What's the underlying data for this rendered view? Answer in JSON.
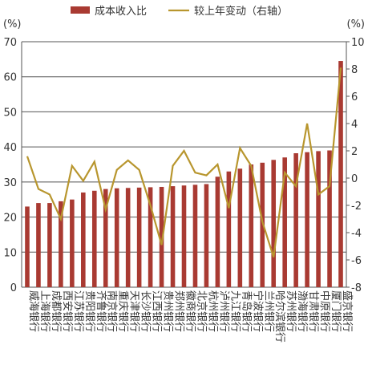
{
  "chart_data": {
    "type": "bar-line",
    "y_unit": "(%)",
    "y2_unit": "(%)",
    "categories": [
      "威海银行",
      "上海银行",
      "成都银行",
      "西安银行",
      "江苏银行",
      "贵阳银行",
      "齐鲁银行",
      "南京银行",
      "重庆银行",
      "天津银行",
      "长沙银行",
      "江西银行",
      "贵州银行",
      "郑州银行",
      "徽商银行",
      "北京银行",
      "杭州银行",
      "泸州银行",
      "九江银行",
      "青岛银行",
      "宁波银行",
      "兰州银行",
      "哈尔滨银行",
      "苏州银行",
      "渤海银行",
      "甘肃银行",
      "中原银行",
      "厦门银行",
      "盛京银行"
    ],
    "series": [
      {
        "name": "成本收入比",
        "color": "#a93a32",
        "values": [
          23,
          24,
          24,
          24.5,
          25,
          27,
          27.5,
          28,
          28.2,
          28.3,
          28.4,
          28.5,
          28.6,
          28.8,
          29,
          29.2,
          29.4,
          31.5,
          33,
          33.8,
          35,
          35.5,
          36.3,
          37,
          38.2,
          38.5,
          38.8,
          39,
          64.5
        ]
      },
      {
        "name": "较上年变动（右轴）",
        "color": "#b8962e",
        "axis": "y2",
        "values": [
          1.6,
          -0.8,
          -1.2,
          -3,
          0.9,
          -0.2,
          1.2,
          -2.3,
          0.6,
          1.3,
          0.6,
          -2,
          -4.9,
          0.9,
          2,
          0.4,
          0.2,
          1,
          -2.2,
          2.2,
          0.9,
          -3.2,
          -5.8,
          0.4,
          -0.6,
          4,
          -1.2,
          -0.6,
          8.1
        ]
      }
    ],
    "ylim": [
      0,
      70
    ],
    "yticks": [
      0,
      10,
      20,
      30,
      40,
      50,
      60,
      70
    ],
    "y2lim": [
      -8,
      10
    ],
    "y2ticks": [
      -8,
      -6,
      -4,
      -2,
      0,
      2,
      4,
      6,
      8,
      10
    ],
    "grid": true
  }
}
